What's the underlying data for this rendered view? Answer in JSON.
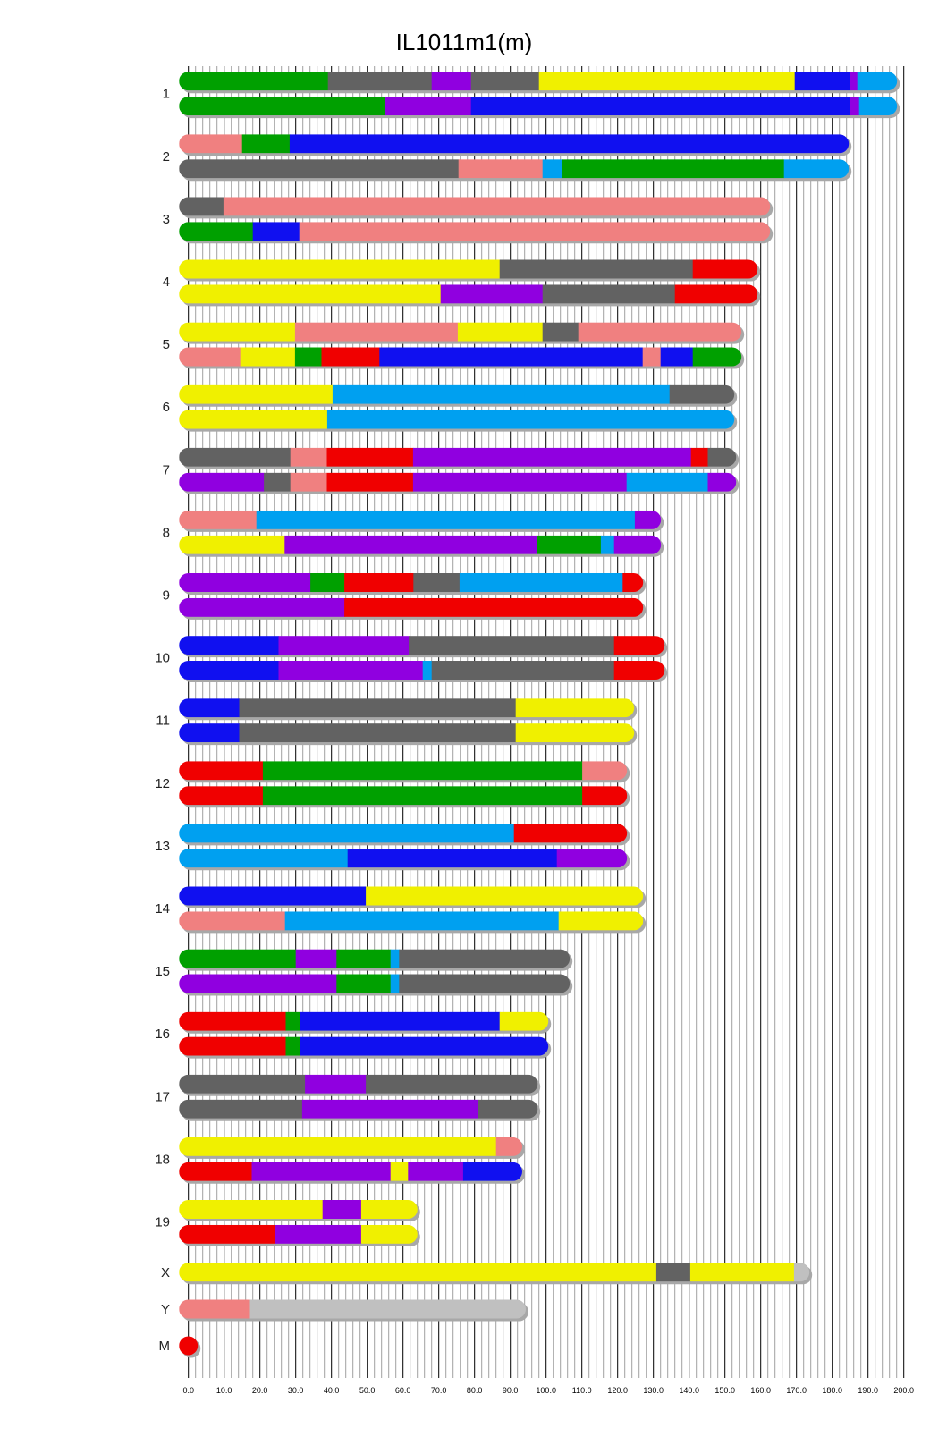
{
  "chart_data": {
    "type": "chromosome-painting",
    "title": "IL1011m1(m)",
    "xlim": [
      0,
      200
    ],
    "x_ticks": [
      "0.0",
      "10.0",
      "20.0",
      "30.0",
      "40.0",
      "50.0",
      "60.0",
      "70.0",
      "80.0",
      "90.0",
      "100.0",
      "110.0",
      "120.0",
      "130.0",
      "140.0",
      "150.0",
      "160.0",
      "170.0",
      "180.0",
      "190.0",
      "200.0"
    ],
    "grid": {
      "major_every": 10,
      "minor_every": 2
    },
    "colors": {
      "G": "#00A000",
      "K": "#626262",
      "P": "#9000E0",
      "Y": "#F0F000",
      "B": "#1010F0",
      "L": "#00A0F0",
      "S": "#F08080",
      "R": "#F00000",
      "C": "#C0C0C0"
    },
    "shadow_color": "#A8A8A8",
    "chromosomes": [
      {
        "name": "1",
        "end": 195.5,
        "tracks": [
          [
            [
              0,
              39,
              "G"
            ],
            [
              39,
              68,
              "K"
            ],
            [
              68,
              79,
              "P"
            ],
            [
              79,
              98,
              "K"
            ],
            [
              98,
              169.5,
              "Y"
            ],
            [
              169.5,
              185,
              "B"
            ],
            [
              185,
              187,
              "P"
            ],
            [
              187,
              195.5,
              "L"
            ]
          ],
          [
            [
              0,
              55,
              "G"
            ],
            [
              55,
              79,
              "P"
            ],
            [
              79,
              185,
              "B"
            ],
            [
              185,
              187.5,
              "P"
            ],
            [
              187.5,
              195.5,
              "L"
            ]
          ]
        ]
      },
      {
        "name": "2",
        "end": 182,
        "tracks": [
          [
            [
              0,
              15,
              "S"
            ],
            [
              15,
              28.3,
              "G"
            ],
            [
              28.3,
              182,
              "B"
            ]
          ],
          [
            [
              0,
              75.5,
              "K"
            ],
            [
              75.5,
              99,
              "S"
            ],
            [
              99,
              104.5,
              "L"
            ],
            [
              104.5,
              166.5,
              "G"
            ],
            [
              166.5,
              182,
              "L"
            ]
          ]
        ]
      },
      {
        "name": "3",
        "end": 160,
        "tracks": [
          [
            [
              0,
              9.8,
              "K"
            ],
            [
              9.8,
              160,
              "S"
            ]
          ],
          [
            [
              0,
              18,
              "G"
            ],
            [
              18,
              31,
              "B"
            ],
            [
              31,
              160,
              "S"
            ]
          ]
        ]
      },
      {
        "name": "4",
        "end": 156.5,
        "tracks": [
          [
            [
              0,
              87,
              "Y"
            ],
            [
              87,
              141,
              "K"
            ],
            [
              141,
              156.5,
              "R"
            ]
          ],
          [
            [
              0,
              70.5,
              "Y"
            ],
            [
              70.5,
              99,
              "P"
            ],
            [
              99,
              136,
              "K"
            ],
            [
              136,
              156.5,
              "R"
            ]
          ]
        ]
      },
      {
        "name": "5",
        "end": 152,
        "tracks": [
          [
            [
              0,
              29.8,
              "Y"
            ],
            [
              29.8,
              75.3,
              "S"
            ],
            [
              75.3,
              99,
              "Y"
            ],
            [
              99,
              109,
              "K"
            ],
            [
              109,
              152,
              "S"
            ]
          ],
          [
            [
              0,
              14.5,
              "S"
            ],
            [
              14.5,
              29.8,
              "Y"
            ],
            [
              29.8,
              37.2,
              "G"
            ],
            [
              37.2,
              53.4,
              "R"
            ],
            [
              53.4,
              127,
              "B"
            ],
            [
              127,
              132,
              "S"
            ],
            [
              132,
              141,
              "B"
            ],
            [
              141,
              152,
              "G"
            ]
          ]
        ]
      },
      {
        "name": "6",
        "end": 150,
        "tracks": [
          [
            [
              0,
              40.3,
              "Y"
            ],
            [
              40.3,
              134.5,
              "L"
            ],
            [
              134.5,
              150,
              "K"
            ]
          ],
          [
            [
              0,
              38.8,
              "Y"
            ],
            [
              38.8,
              150,
              "L"
            ]
          ]
        ]
      },
      {
        "name": "7",
        "end": 150.5,
        "tracks": [
          [
            [
              0,
              28.5,
              "K"
            ],
            [
              28.5,
              38.7,
              "S"
            ],
            [
              38.7,
              62.8,
              "R"
            ],
            [
              62.8,
              140.5,
              "P"
            ],
            [
              140.5,
              145.2,
              "R"
            ],
            [
              145.2,
              150.5,
              "K"
            ]
          ],
          [
            [
              0,
              21.1,
              "P"
            ],
            [
              21.1,
              28.5,
              "K"
            ],
            [
              28.5,
              38.7,
              "S"
            ],
            [
              38.7,
              62.8,
              "R"
            ],
            [
              62.8,
              122.5,
              "P"
            ],
            [
              122.5,
              145.2,
              "L"
            ],
            [
              145.2,
              150.5,
              "P"
            ]
          ]
        ]
      },
      {
        "name": "8",
        "end": 129.5,
        "tracks": [
          [
            [
              0,
              19,
              "S"
            ],
            [
              19,
              124.8,
              "L"
            ],
            [
              124.8,
              129.5,
              "P"
            ]
          ],
          [
            [
              0,
              26.9,
              "Y"
            ],
            [
              26.9,
              97.5,
              "P"
            ],
            [
              97.5,
              115.3,
              "G"
            ],
            [
              115.3,
              119,
              "L"
            ],
            [
              119,
              129.5,
              "P"
            ]
          ]
        ]
      },
      {
        "name": "9",
        "end": 124.5,
        "tracks": [
          [
            [
              0,
              34.1,
              "P"
            ],
            [
              34.1,
              43.6,
              "G"
            ],
            [
              43.6,
              62.9,
              "R"
            ],
            [
              62.9,
              75.8,
              "K"
            ],
            [
              75.8,
              121.4,
              "L"
            ],
            [
              121.4,
              124.5,
              "R"
            ]
          ],
          [
            [
              0,
              43.6,
              "P"
            ],
            [
              43.6,
              124.5,
              "R"
            ]
          ]
        ]
      },
      {
        "name": "10",
        "end": 130.5,
        "tracks": [
          [
            [
              0,
              25.2,
              "B"
            ],
            [
              25.2,
              61.6,
              "P"
            ],
            [
              61.6,
              119,
              "K"
            ],
            [
              119,
              130.5,
              "R"
            ]
          ],
          [
            [
              0,
              25.2,
              "B"
            ],
            [
              25.2,
              65.5,
              "P"
            ],
            [
              65.5,
              68,
              "L"
            ],
            [
              68,
              119,
              "K"
            ],
            [
              119,
              130.5,
              "R"
            ]
          ]
        ]
      },
      {
        "name": "11",
        "end": 122,
        "tracks": [
          [
            [
              0,
              14.2,
              "B"
            ],
            [
              14.2,
              91.5,
              "K"
            ],
            [
              91.5,
              122,
              "Y"
            ]
          ],
          [
            [
              0,
              14.2,
              "B"
            ],
            [
              14.2,
              91.5,
              "K"
            ],
            [
              91.5,
              122,
              "Y"
            ]
          ]
        ]
      },
      {
        "name": "12",
        "end": 120,
        "tracks": [
          [
            [
              0,
              20.8,
              "R"
            ],
            [
              20.8,
              110.1,
              "G"
            ],
            [
              110.1,
              120,
              "S"
            ]
          ],
          [
            [
              0,
              20.8,
              "R"
            ],
            [
              20.8,
              110.1,
              "G"
            ],
            [
              110.1,
              120,
              "R"
            ]
          ]
        ]
      },
      {
        "name": "13",
        "end": 120,
        "tracks": [
          [
            [
              0,
              91,
              "L"
            ],
            [
              91,
              120,
              "R"
            ]
          ],
          [
            [
              0,
              44.5,
              "L"
            ],
            [
              44.5,
              103,
              "B"
            ],
            [
              103,
              120,
              "P"
            ]
          ]
        ]
      },
      {
        "name": "14",
        "end": 124.5,
        "tracks": [
          [
            [
              0,
              49.6,
              "B"
            ],
            [
              49.6,
              124.5,
              "Y"
            ]
          ],
          [
            [
              0,
              27,
              "S"
            ],
            [
              27,
              103.5,
              "L"
            ],
            [
              103.5,
              124.5,
              "Y"
            ]
          ]
        ]
      },
      {
        "name": "15",
        "end": 104,
        "tracks": [
          [
            [
              0,
              30,
              "G"
            ],
            [
              30,
              41.4,
              "P"
            ],
            [
              41.4,
              56.5,
              "G"
            ],
            [
              56.5,
              58.9,
              "L"
            ],
            [
              58.9,
              104,
              "K"
            ]
          ],
          [
            [
              0,
              41.4,
              "P"
            ],
            [
              41.4,
              56.5,
              "G"
            ],
            [
              56.5,
              58.9,
              "L"
            ],
            [
              58.9,
              104,
              "K"
            ]
          ]
        ]
      },
      {
        "name": "16",
        "end": 98,
        "tracks": [
          [
            [
              0,
              27.2,
              "R"
            ],
            [
              27.2,
              31.1,
              "G"
            ],
            [
              31.1,
              87,
              "B"
            ],
            [
              87,
              98,
              "Y"
            ]
          ],
          [
            [
              0,
              27.2,
              "R"
            ],
            [
              27.2,
              31.1,
              "G"
            ],
            [
              31.1,
              98,
              "B"
            ]
          ]
        ]
      },
      {
        "name": "17",
        "end": 95,
        "tracks": [
          [
            [
              0,
              32.6,
              "K"
            ],
            [
              32.6,
              49.6,
              "P"
            ],
            [
              49.6,
              95,
              "K"
            ]
          ],
          [
            [
              0,
              31.8,
              "K"
            ],
            [
              31.8,
              81,
              "P"
            ],
            [
              81,
              95,
              "K"
            ]
          ]
        ]
      },
      {
        "name": "18",
        "end": 90.7,
        "tracks": [
          [
            [
              0,
              86,
              "Y"
            ],
            [
              86,
              90.7,
              "S"
            ]
          ],
          [
            [
              0,
              17.7,
              "R"
            ],
            [
              17.7,
              56.5,
              "P"
            ],
            [
              56.5,
              61.4,
              "Y"
            ],
            [
              61.4,
              76.8,
              "P"
            ],
            [
              76.8,
              90.7,
              "B"
            ]
          ]
        ]
      },
      {
        "name": "19",
        "end": 61.4,
        "tracks": [
          [
            [
              0,
              37.5,
              "Y"
            ],
            [
              37.5,
              48.3,
              "P"
            ],
            [
              48.3,
              61.4,
              "Y"
            ]
          ],
          [
            [
              0,
              24.2,
              "R"
            ],
            [
              24.2,
              48.3,
              "P"
            ],
            [
              48.3,
              61.4,
              "Y"
            ]
          ]
        ]
      },
      {
        "name": "X",
        "end": 171,
        "tracks": [
          [
            [
              0,
              130.8,
              "Y"
            ],
            [
              130.8,
              140.3,
              "K"
            ],
            [
              140.3,
              169.3,
              "Y"
            ],
            [
              169.3,
              171,
              "C"
            ]
          ]
        ]
      },
      {
        "name": "Y",
        "end": 91.7,
        "tracks": [
          [
            [
              0,
              17.2,
              "S"
            ],
            [
              17.2,
              91.7,
              "C"
            ]
          ]
        ]
      },
      {
        "name": "M",
        "end": 0.016,
        "tracks": [
          [
            [
              0,
              0.016,
              "R"
            ]
          ]
        ]
      }
    ]
  }
}
